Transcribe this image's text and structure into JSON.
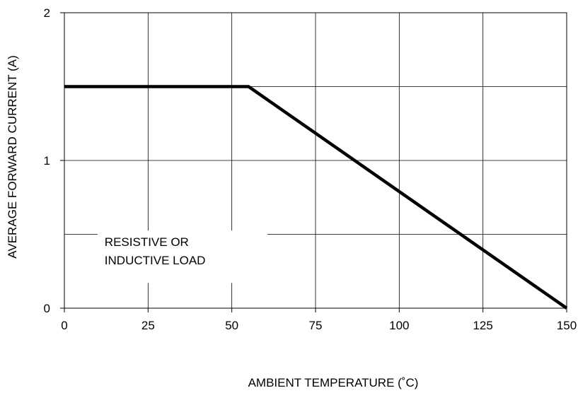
{
  "chart_data": {
    "type": "line",
    "title": "",
    "xlabel": "AMBIENT TEMPERATURE (˚C)",
    "ylabel": "AVERAGE FORWARD CURRENT (A)",
    "xlim": [
      0,
      150
    ],
    "ylim": [
      0,
      2
    ],
    "x_ticks": [
      0,
      25,
      50,
      75,
      100,
      125,
      150
    ],
    "x_tick_labels": [
      "0",
      "25",
      "50",
      "75",
      "100",
      "125",
      "150"
    ],
    "y_ticks": [
      0,
      1,
      2
    ],
    "y_tick_labels": [
      "0",
      "1",
      "2"
    ],
    "grid": true,
    "grid_x": [
      25,
      50,
      75,
      100,
      125
    ],
    "grid_y": [
      0.5,
      1,
      1.5
    ],
    "series": [
      {
        "x": [
          0,
          55,
          150
        ],
        "y": [
          1.5,
          1.5,
          0
        ],
        "color": "#000000"
      }
    ],
    "annotations": [
      {
        "lines": [
          "RESISTIVE OR",
          "INDUCTIVE LOAD"
        ],
        "x": 12,
        "y": 0.42
      }
    ]
  }
}
